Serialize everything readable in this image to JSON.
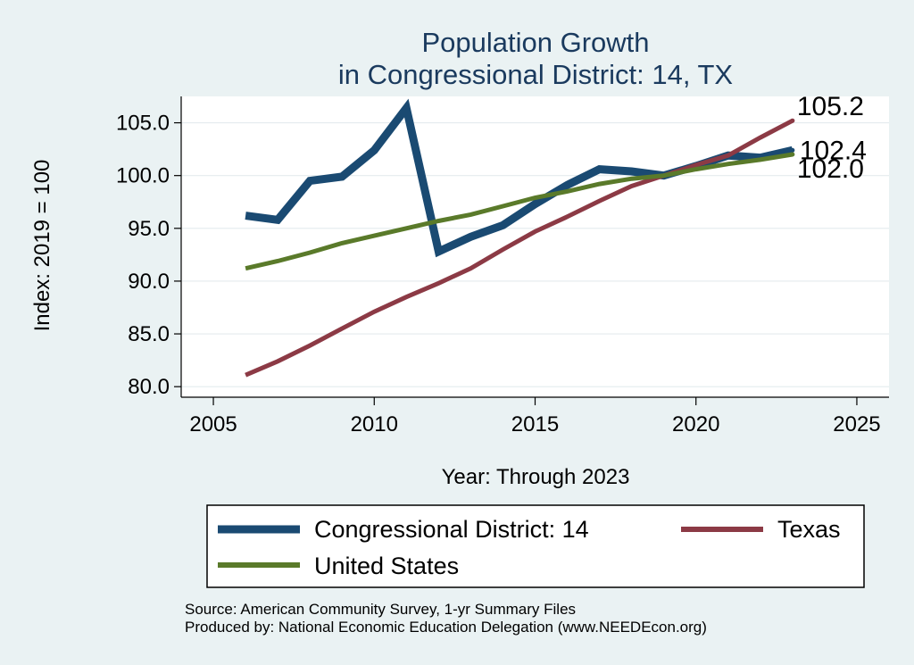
{
  "chart_data": {
    "type": "line",
    "title": [
      "Population Growth",
      "in Congressional District: 14, TX"
    ],
    "xlabel": "Year: Through 2023",
    "ylabel": "Index: 2019 = 100",
    "xlim": [
      2004,
      2026
    ],
    "ylim": [
      79,
      107.5
    ],
    "xticks": [
      2005,
      2010,
      2015,
      2020,
      2025
    ],
    "yticks": [
      80.0,
      85.0,
      90.0,
      95.0,
      100.0,
      105.0
    ],
    "grid": true,
    "legend_position": "bottom",
    "x": [
      2006,
      2007,
      2008,
      2009,
      2010,
      2011,
      2012,
      2013,
      2014,
      2015,
      2016,
      2017,
      2018,
      2019,
      2020,
      2021,
      2022,
      2023
    ],
    "series": [
      {
        "name": "Congressional District: 14",
        "color": "#1a4a72",
        "values": [
          96.2,
          95.8,
          99.5,
          99.9,
          102.4,
          106.4,
          92.8,
          94.2,
          95.3,
          97.3,
          99.1,
          100.6,
          100.4,
          100.0,
          100.9,
          101.9,
          101.7,
          102.4
        ],
        "end_label": "102.4"
      },
      {
        "name": "Texas",
        "color": "#8c3a45",
        "values": [
          81.1,
          82.4,
          83.9,
          85.5,
          87.1,
          88.5,
          89.8,
          91.2,
          93.0,
          94.7,
          96.1,
          97.6,
          99.0,
          100.0,
          101.0,
          101.9,
          103.6,
          105.2
        ],
        "end_label": "105.2"
      },
      {
        "name": "United States",
        "color": "#5a7a2a",
        "values": [
          91.2,
          91.9,
          92.7,
          93.6,
          94.3,
          95.0,
          95.7,
          96.3,
          97.1,
          97.9,
          98.5,
          99.2,
          99.7,
          100.0,
          100.6,
          101.1,
          101.5,
          102.0
        ],
        "end_label": "102.0"
      }
    ]
  },
  "legend": {
    "items": [
      "Congressional District: 14",
      "Texas",
      "United States"
    ]
  },
  "footer": {
    "source": "Source: American Community Survey, 1-yr Summary Files",
    "produced": "Produced by: National Economic Education Delegation (www.NEEDEcon.org)"
  }
}
